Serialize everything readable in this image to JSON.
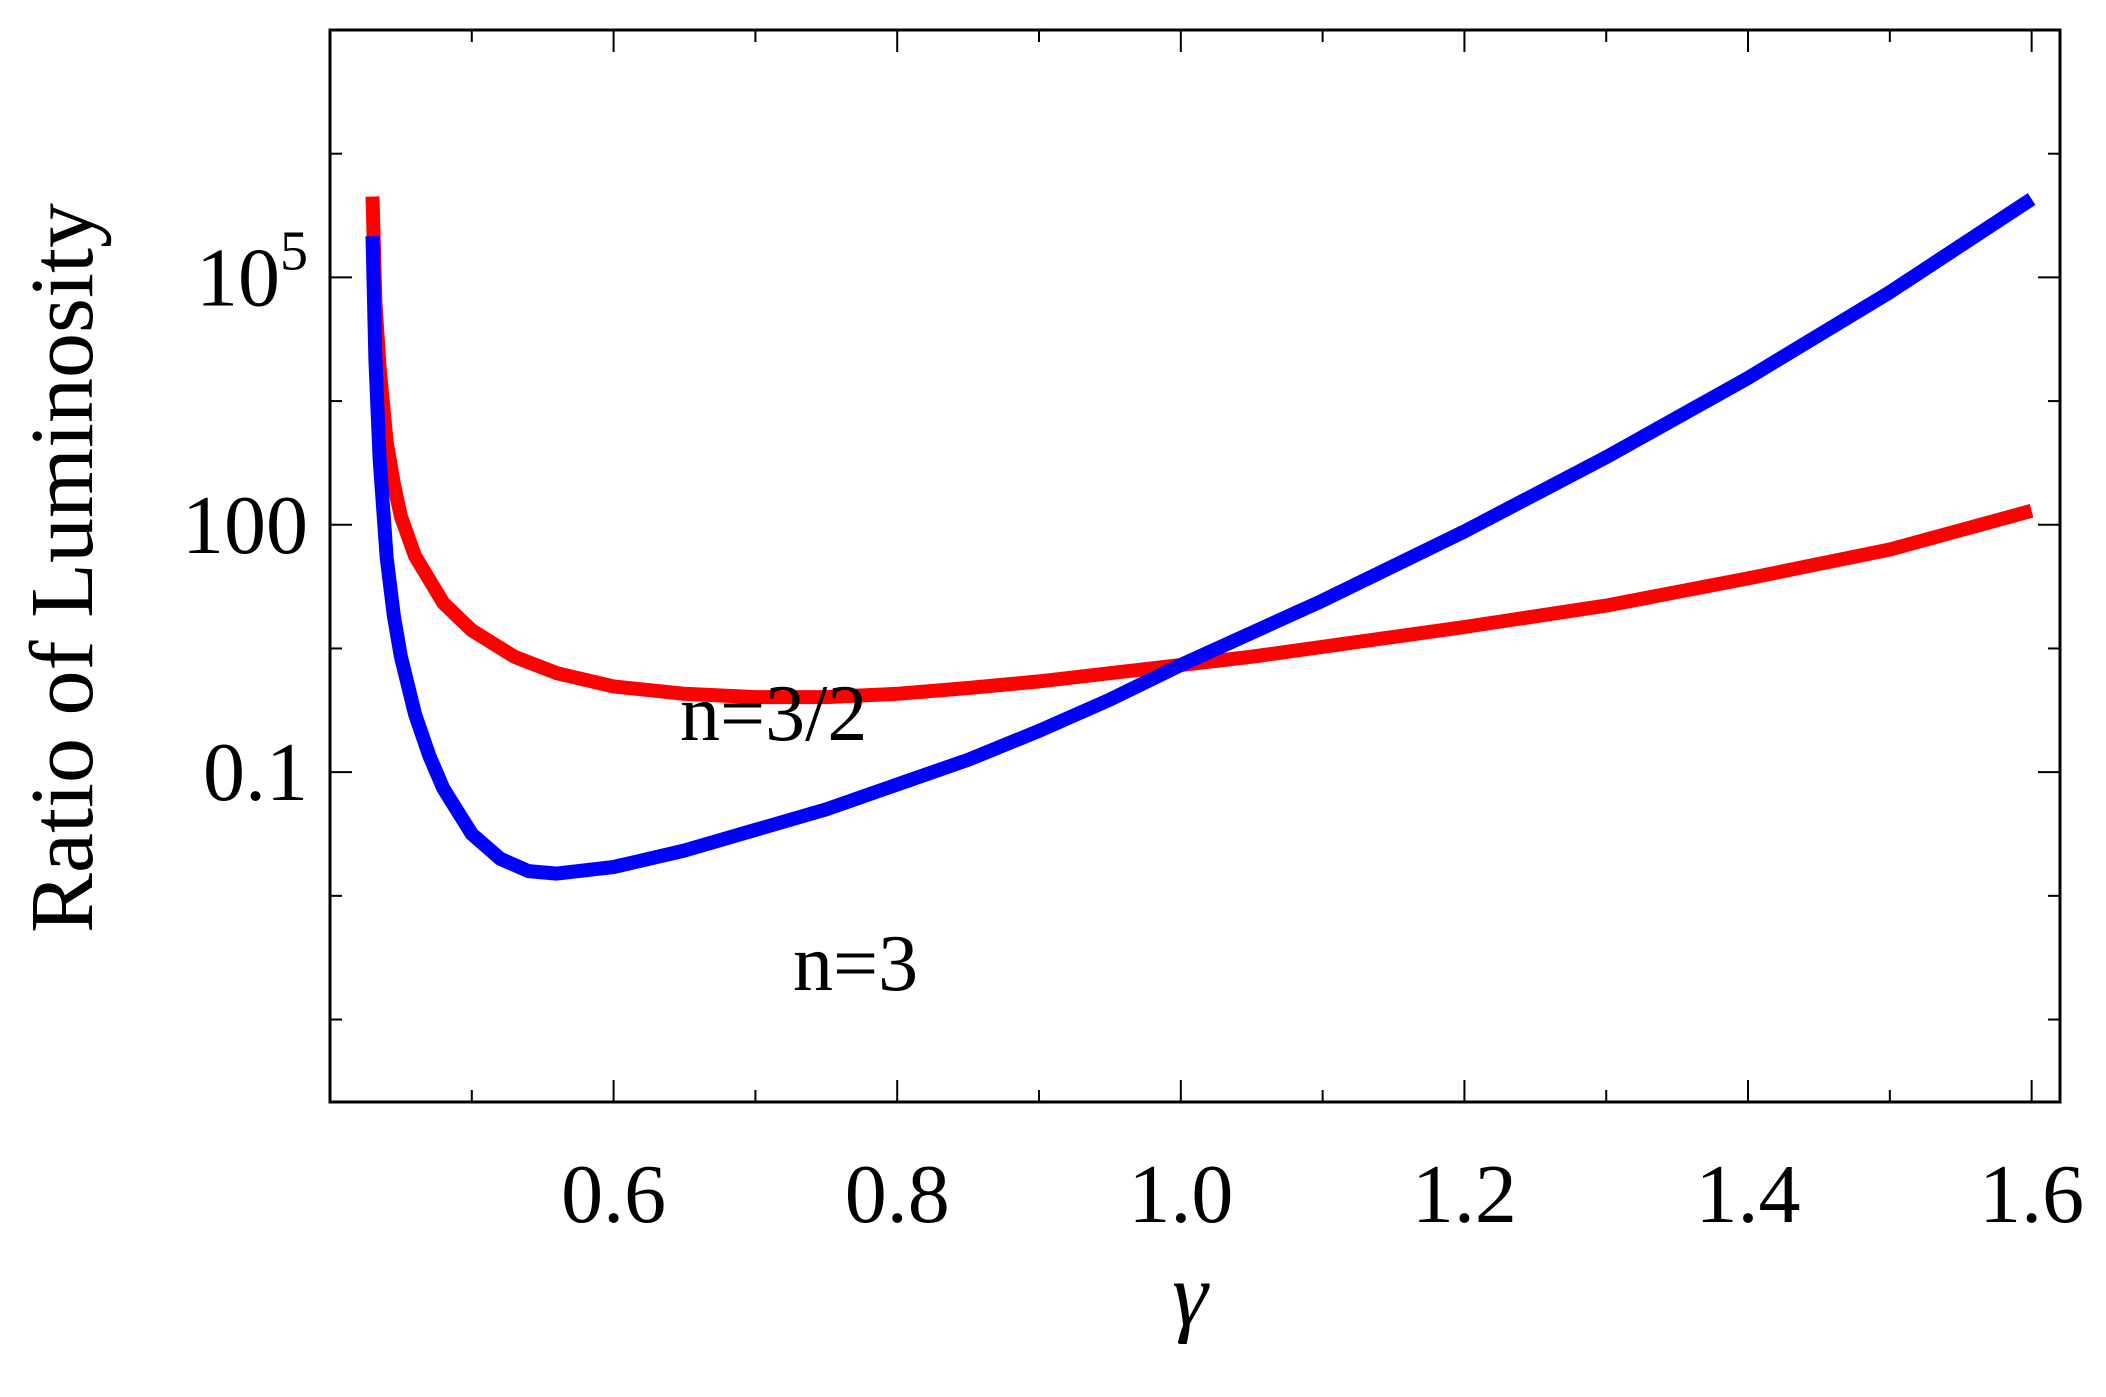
{
  "chart_data": {
    "type": "line",
    "title": "",
    "xlabel": "γ",
    "ylabel": "Ratio of Luminosity",
    "xlim": [
      0.4,
      1.62
    ],
    "ylim_log10": [
      -5,
      8
    ],
    "y_scale": "log",
    "grid": false,
    "x_ticks": [
      {
        "value": 0.6,
        "label": "0.6"
      },
      {
        "value": 0.8,
        "label": "0.8"
      },
      {
        "value": 1.0,
        "label": "1.0"
      },
      {
        "value": 1.2,
        "label": "1.2"
      },
      {
        "value": 1.4,
        "label": "1.4"
      },
      {
        "value": 1.6,
        "label": "1.6"
      }
    ],
    "y_ticks": [
      {
        "log10": -1,
        "base": "0.1",
        "exp": ""
      },
      {
        "log10": 2,
        "base": "100",
        "exp": ""
      },
      {
        "log10": 5,
        "base": "10",
        "exp": "5"
      }
    ],
    "series": [
      {
        "name": "n=3/2",
        "color": "#ff0000",
        "points_gamma_log10y": [
          [
            0.43,
            5.98
          ],
          [
            0.432,
            4.7
          ],
          [
            0.435,
            3.9
          ],
          [
            0.44,
            3.0
          ],
          [
            0.445,
            2.5
          ],
          [
            0.45,
            2.1
          ],
          [
            0.46,
            1.62
          ],
          [
            0.48,
            1.05
          ],
          [
            0.5,
            0.72
          ],
          [
            0.53,
            0.4
          ],
          [
            0.56,
            0.2
          ],
          [
            0.6,
            0.04
          ],
          [
            0.65,
            -0.05
          ],
          [
            0.7,
            -0.09
          ],
          [
            0.75,
            -0.09
          ],
          [
            0.8,
            -0.05
          ],
          [
            0.85,
            0.02
          ],
          [
            0.9,
            0.1
          ],
          [
            0.95,
            0.2
          ],
          [
            1.0,
            0.3
          ],
          [
            1.05,
            0.4
          ],
          [
            1.1,
            0.52
          ],
          [
            1.2,
            0.76
          ],
          [
            1.3,
            1.02
          ],
          [
            1.4,
            1.35
          ],
          [
            1.5,
            1.7
          ],
          [
            1.6,
            2.17
          ]
        ]
      },
      {
        "name": "n=3",
        "color": "#0000ff",
        "points_gamma_log10y": [
          [
            0.43,
            5.5
          ],
          [
            0.432,
            4.0
          ],
          [
            0.435,
            2.8
          ],
          [
            0.44,
            1.6
          ],
          [
            0.445,
            0.9
          ],
          [
            0.45,
            0.4
          ],
          [
            0.46,
            -0.3
          ],
          [
            0.47,
            -0.8
          ],
          [
            0.48,
            -1.2
          ],
          [
            0.5,
            -1.75
          ],
          [
            0.52,
            -2.05
          ],
          [
            0.54,
            -2.2
          ],
          [
            0.56,
            -2.23
          ],
          [
            0.6,
            -2.15
          ],
          [
            0.65,
            -1.95
          ],
          [
            0.7,
            -1.7
          ],
          [
            0.75,
            -1.45
          ],
          [
            0.8,
            -1.15
          ],
          [
            0.85,
            -0.85
          ],
          [
            0.9,
            -0.5
          ],
          [
            0.95,
            -0.12
          ],
          [
            1.0,
            0.3
          ],
          [
            1.1,
            1.08
          ],
          [
            1.2,
            1.92
          ],
          [
            1.3,
            2.82
          ],
          [
            1.4,
            3.78
          ],
          [
            1.5,
            4.82
          ],
          [
            1.6,
            5.95
          ]
        ]
      }
    ]
  }
}
